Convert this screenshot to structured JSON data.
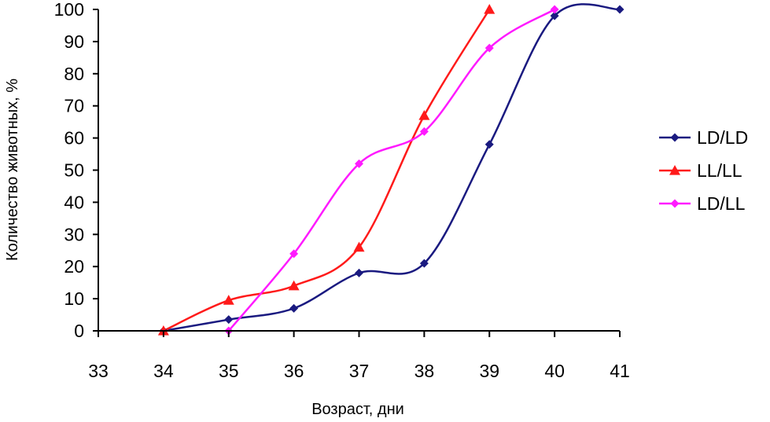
{
  "chart_data": {
    "type": "line",
    "xlabel": "Возраст, дни",
    "ylabel": "Количество животных, %",
    "xlim": [
      33,
      41
    ],
    "ylim": [
      0,
      100
    ],
    "xticks": [
      "33",
      "34",
      "35",
      "36",
      "37",
      "38",
      "39",
      "40",
      "41"
    ],
    "yticks": [
      "0",
      "10",
      "20",
      "30",
      "40",
      "50",
      "60",
      "70",
      "80",
      "90",
      "100"
    ],
    "grid": false,
    "legend_position": "right",
    "smooth": true,
    "series": [
      {
        "name": "LD/LD",
        "color": "#1a1a80",
        "marker": "diamond",
        "x": [
          34,
          35,
          36,
          37,
          38,
          39,
          40,
          41
        ],
        "y": [
          0,
          3.5,
          7,
          18,
          21,
          58,
          98,
          100
        ]
      },
      {
        "name": "LL/LL",
        "color": "#ff1a1a",
        "marker": "triangle",
        "x": [
          34,
          35,
          36,
          37,
          38,
          39
        ],
        "y": [
          0,
          9.5,
          14,
          26,
          67,
          100
        ]
      },
      {
        "name": "LD/LL",
        "color": "#ff1aff",
        "marker": "diamond",
        "x": [
          35,
          36,
          37,
          38,
          39,
          40
        ],
        "y": [
          0,
          24,
          52,
          62,
          88,
          100
        ]
      }
    ]
  }
}
